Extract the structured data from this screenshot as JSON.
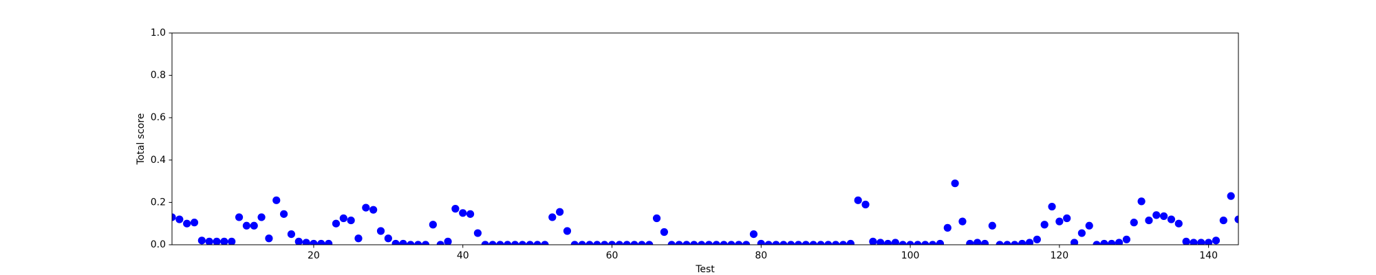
{
  "chart_data": {
    "type": "scatter",
    "xlabel": "Test",
    "ylabel": "Total score",
    "color": "#0000ff",
    "x": [
      1,
      2,
      3,
      4,
      5,
      6,
      7,
      8,
      9,
      10,
      11,
      12,
      13,
      14,
      15,
      16,
      17,
      18,
      19,
      20,
      21,
      22,
      23,
      24,
      25,
      26,
      27,
      28,
      29,
      30,
      31,
      32,
      33,
      34,
      35,
      36,
      37,
      38,
      39,
      40,
      41,
      42,
      43,
      44,
      45,
      46,
      47,
      48,
      49,
      50,
      51,
      52,
      53,
      54,
      55,
      56,
      57,
      58,
      59,
      60,
      61,
      62,
      63,
      64,
      65,
      66,
      67,
      68,
      69,
      70,
      71,
      72,
      73,
      74,
      75,
      76,
      77,
      78,
      79,
      80,
      81,
      82,
      83,
      84,
      85,
      86,
      87,
      88,
      89,
      90,
      91,
      92,
      93,
      94,
      95,
      96,
      97,
      98,
      99,
      100,
      101,
      102,
      103,
      104,
      105,
      106,
      107,
      108,
      109,
      110,
      111,
      112,
      113,
      114,
      115,
      116,
      117,
      118,
      119,
      120,
      121,
      122,
      123,
      124,
      125,
      126,
      127,
      128,
      129,
      130,
      131,
      132,
      133,
      134,
      135,
      136,
      137,
      138,
      139,
      140,
      141,
      142,
      143,
      144
    ],
    "values": [
      0.13,
      0.12,
      0.1,
      0.105,
      0.02,
      0.015,
      0.015,
      0.015,
      0.015,
      0.13,
      0.09,
      0.09,
      0.13,
      0.03,
      0.21,
      0.145,
      0.05,
      0.015,
      0.01,
      0.005,
      0.005,
      0.005,
      0.1,
      0.125,
      0.115,
      0.03,
      0.175,
      0.165,
      0.065,
      0.03,
      0.005,
      0.005,
      0,
      0,
      0,
      0.095,
      0,
      0.015,
      0.17,
      0.15,
      0.145,
      0.055,
      0,
      0,
      0,
      0,
      0,
      0,
      0,
      0,
      0,
      0.13,
      0.155,
      0.065,
      0,
      0,
      0,
      0,
      0,
      0,
      0,
      0,
      0,
      0,
      0,
      0.125,
      0.06,
      0,
      0,
      0,
      0,
      0,
      0,
      0,
      0,
      0,
      0,
      0,
      0.05,
      0.005,
      0,
      0,
      0,
      0,
      0,
      0,
      0,
      0,
      0,
      0,
      0,
      0.005,
      0.21,
      0.19,
      0.015,
      0.01,
      0.005,
      0.01,
      0,
      0,
      0,
      0,
      0,
      0.005,
      0.08,
      0.29,
      0.11,
      0.005,
      0.01,
      0.005,
      0.09,
      0,
      0,
      0,
      0.005,
      0.01,
      0.025,
      0.095,
      0.18,
      0.11,
      0.125,
      0.01,
      0.055,
      0.09,
      0,
      0.005,
      0.005,
      0.01,
      0.025,
      0.105,
      0.205,
      0.115,
      0.14,
      0.135,
      0.12,
      0.1,
      0.015,
      0.01,
      0.01,
      0.01,
      0.02,
      0.115,
      0.23,
      0.12
    ],
    "xlim": [
      1,
      144
    ],
    "xticks": [
      20,
      40,
      60,
      80,
      100,
      120,
      140
    ],
    "ylim": [
      0,
      1
    ],
    "yticks": [
      {
        "value": 0,
        "label": "0.0"
      },
      {
        "value": 0.2,
        "label": "0.2"
      },
      {
        "value": 0.4,
        "label": "0.4"
      },
      {
        "value": 0.6,
        "label": "0.6"
      },
      {
        "value": 0.8,
        "label": "0.8"
      },
      {
        "value": 1,
        "label": "1.0"
      }
    ],
    "grid": false
  }
}
